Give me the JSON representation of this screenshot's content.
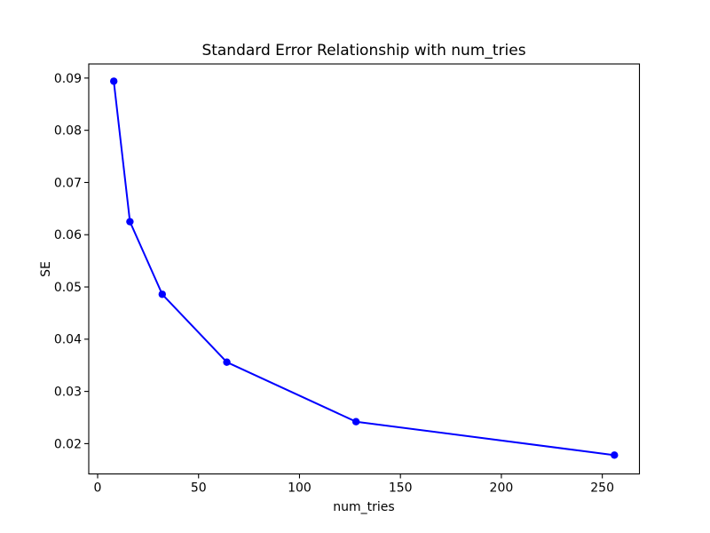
{
  "chart_data": {
    "type": "line",
    "title": "Standard Error Relationship with num_tries",
    "xlabel": "num_tries",
    "ylabel": "SE",
    "x": [
      8,
      16,
      32,
      64,
      128,
      256
    ],
    "y": [
      0.0894,
      0.0625,
      0.0486,
      0.0356,
      0.0242,
      0.0178
    ],
    "xticks": [
      0,
      50,
      100,
      150,
      200,
      250
    ],
    "xtick_labels": [
      "0",
      "50",
      "100",
      "150",
      "200",
      "250"
    ],
    "yticks": [
      0.02,
      0.03,
      0.04,
      0.05,
      0.06,
      0.07,
      0.08,
      0.09
    ],
    "ytick_labels": [
      "0.02",
      "0.03",
      "0.04",
      "0.05",
      "0.06",
      "0.07",
      "0.08",
      "0.09"
    ],
    "xlim": [
      -4.4,
      268.4
    ],
    "ylim": [
      0.0142,
      0.0927
    ],
    "line_color": "#0000ff",
    "marker": "circle",
    "grid": false,
    "legend": false
  }
}
